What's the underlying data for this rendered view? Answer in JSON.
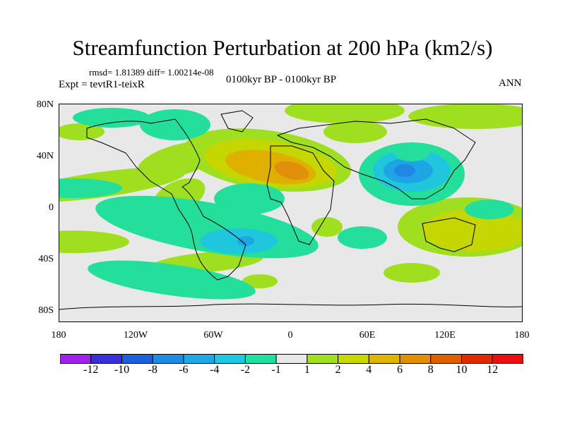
{
  "title": "Streamfunction Perturbation at 200 hPa (km2/s)",
  "stats": "rmsd= 1.81389  diff= 1.00214e-08",
  "experiment": "Expt = tevtR1-teixR",
  "period": "0100kyr BP - 0100kyr BP",
  "season": "ANN",
  "lat_labels": [
    "80N",
    "40N",
    "0",
    "40S",
    "80S"
  ],
  "lon_labels": [
    "180",
    "120W",
    "60W",
    "0",
    "60E",
    "120E",
    "180"
  ],
  "colorbar": {
    "labels": [
      "-12",
      "-10",
      "-8",
      "-6",
      "-4",
      "-2",
      "-1",
      "1",
      "2",
      "4",
      "6",
      "8",
      "10",
      "12"
    ],
    "colors": [
      "#a020f0",
      "#3a2fd8",
      "#1e5fe0",
      "#1e8be6",
      "#1ea8e6",
      "#1ec8e0",
      "#20e0a0",
      "#e8e8e8",
      "#a0e020",
      "#c8d800",
      "#e0b400",
      "#e09000",
      "#e06000",
      "#e02a00",
      "#e81010"
    ]
  },
  "fill_colors": {
    "background": "#e8e8e8",
    "pos1": "#9fdf1f",
    "pos2": "#c5d600",
    "pos3": "#dfb000",
    "pos4": "#e0900a",
    "neg1": "#24df9c",
    "neg2": "#1fc6dd",
    "neg3": "#1ea6e4",
    "neg4": "#1f88e4"
  }
}
